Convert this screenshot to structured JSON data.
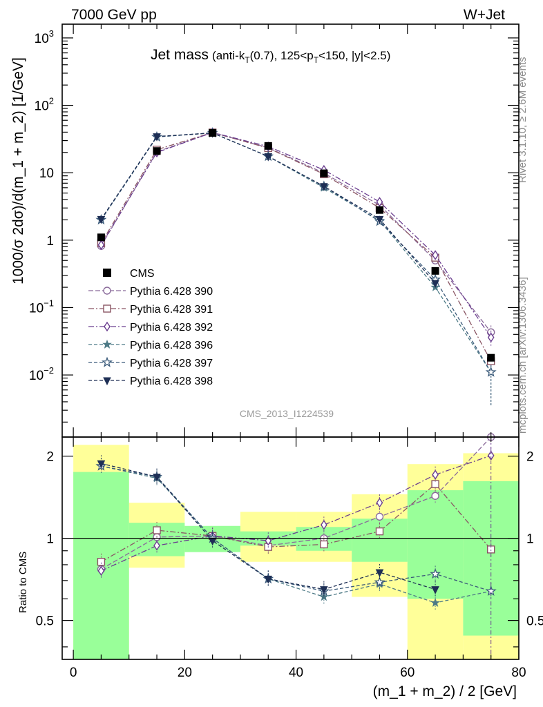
{
  "header": {
    "energy": "7000 GeV pp",
    "process": "W+Jet"
  },
  "side_labels": {
    "rivet": "Rivet 3.1.10, ≥ 2.6M events",
    "source": "mcplots.cern.ch [arXiv:1306.3436]"
  },
  "chart_data": {
    "type": "line",
    "title": {
      "main": "Jet mass",
      "detail_prefix": "(anti-k",
      "detail_sub": "T",
      "detail_mid": "(0.7), 125<p",
      "detail_mid_sub": "T",
      "detail_suffix": "<150, |y|<2.5)"
    },
    "analysis": "CMS_2013_I1224539",
    "xlabel": "(m_1 + m_2) / 2 [GeV]",
    "ylabel": "1000/σ 2dσ)/d(m_1 + m_2) [1/GeV]",
    "ratio_ylabel": "Ratio to CMS",
    "xlim": [
      -2,
      80
    ],
    "ylim": [
      0.0012,
      1600
    ],
    "ratio_ylim": [
      0.36,
      2.35
    ],
    "x_ticks": [
      "0",
      "20",
      "40",
      "60",
      "80"
    ],
    "y_ticks": [
      {
        "value": 1000,
        "base": "10",
        "exp": "3"
      },
      {
        "value": 100,
        "base": "10",
        "exp": "2"
      },
      {
        "value": 10,
        "base": "10",
        "exp": ""
      },
      {
        "value": 1,
        "base": "1",
        "exp": ""
      },
      {
        "value": 0.1,
        "base": "10",
        "exp": "−1"
      },
      {
        "value": 0.01,
        "base": "10",
        "exp": "−2"
      }
    ],
    "ratio_ticks": [
      {
        "value": 2,
        "label": "2"
      },
      {
        "value": 1,
        "label": "1"
      },
      {
        "value": 0.5,
        "label": "0.5"
      }
    ],
    "x": [
      5,
      15,
      25,
      35,
      45,
      55,
      65,
      75
    ],
    "bin_edges": [
      0,
      10,
      20,
      30,
      40,
      50,
      60,
      70,
      80
    ],
    "data": {
      "name": "CMS",
      "values": [
        1.1,
        21,
        39,
        25,
        9.8,
        2.8,
        0.35,
        0.018
      ]
    },
    "band_green": [
      [
        0.05,
        1.75
      ],
      [
        0.86,
        1.14
      ],
      [
        0.89,
        1.11
      ],
      [
        0.94,
        1.06
      ],
      [
        0.9,
        1.1
      ],
      [
        0.82,
        1.18
      ],
      [
        0.6,
        1.5
      ],
      [
        0.44,
        1.62
      ]
    ],
    "band_yellow": [
      [
        0.05,
        2.2
      ],
      [
        0.78,
        1.35
      ],
      [
        0.92,
        1.08
      ],
      [
        0.82,
        1.25
      ],
      [
        0.82,
        1.25
      ],
      [
        0.61,
        1.45
      ],
      [
        0.36,
        1.87
      ],
      [
        0.36,
        2.05
      ]
    ],
    "series": [
      {
        "name": "Pythia 6.428 390",
        "color": "#8a6a9a",
        "marker": "circle",
        "dash": "7,3",
        "values": [
          0.82,
          20.5,
          39.5,
          23.5,
          9.9,
          3.3,
          0.5,
          0.043
        ]
      },
      {
        "name": "Pythia 6.428 391",
        "color": "#8a5563",
        "marker": "square",
        "dash": "8,3,2,3",
        "values": [
          0.9,
          22,
          39.5,
          23.2,
          9.5,
          3.0,
          0.55,
          0.016
        ]
      },
      {
        "name": "Pythia 6.428 392",
        "color": "#6a3d8f",
        "marker": "diamond",
        "dash": "8,3,2,3",
        "values": [
          0.85,
          20,
          39.5,
          24.5,
          11,
          3.7,
          0.6,
          0.036
        ]
      },
      {
        "name": "Pythia 6.428 396",
        "color": "#4d7a86",
        "marker": "star-filled",
        "dash": "5,3",
        "values": [
          2.0,
          34,
          39,
          17.5,
          6.0,
          1.95,
          0.2,
          0.011
        ]
      },
      {
        "name": "Pythia 6.428 397",
        "color": "#3a5a7a",
        "marker": "star-open",
        "dash": "5,3",
        "values": [
          2.0,
          34,
          39,
          17.5,
          6.3,
          1.9,
          0.26,
          0.011
        ]
      },
      {
        "name": "Pythia 6.428 398",
        "color": "#1e2f55",
        "marker": "triangle-down",
        "dash": "5,3",
        "values": [
          2.05,
          34.5,
          39,
          17.5,
          6.3,
          2.05,
          0.23,
          null
        ]
      }
    ],
    "ratios": [
      [
        0.77,
        1.01,
        1.02,
        0.94,
        1.0,
        1.2,
        1.43,
        2.38
      ],
      [
        0.82,
        1.07,
        1.02,
        0.93,
        0.95,
        1.06,
        1.58,
        0.91
      ],
      [
        0.76,
        0.94,
        1.02,
        0.98,
        1.12,
        1.35,
        1.71,
        2.01
      ],
      [
        1.84,
        1.66,
        1.0,
        0.71,
        0.61,
        0.68,
        0.58,
        0.64
      ],
      [
        1.84,
        1.68,
        1.0,
        0.71,
        0.64,
        0.69,
        0.74,
        0.64
      ],
      [
        1.88,
        1.68,
        0.98,
        0.71,
        0.65,
        0.75,
        0.65,
        null
      ]
    ]
  }
}
